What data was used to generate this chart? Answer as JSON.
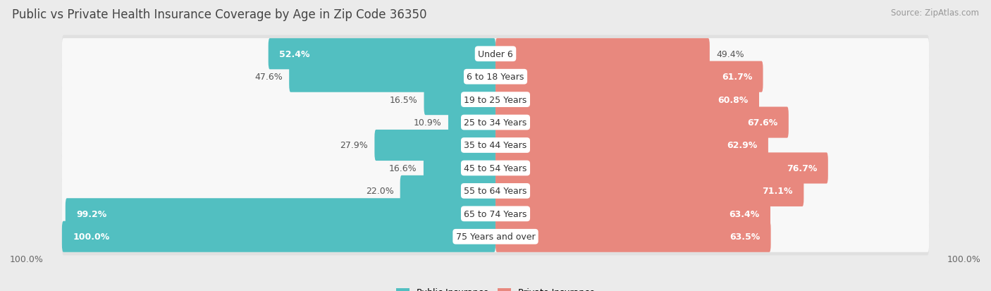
{
  "title": "Public vs Private Health Insurance Coverage by Age in Zip Code 36350",
  "source": "Source: ZipAtlas.com",
  "categories": [
    "Under 6",
    "6 to 18 Years",
    "19 to 25 Years",
    "25 to 34 Years",
    "35 to 44 Years",
    "45 to 54 Years",
    "55 to 64 Years",
    "65 to 74 Years",
    "75 Years and over"
  ],
  "public_values": [
    52.4,
    47.6,
    16.5,
    10.9,
    27.9,
    16.6,
    22.0,
    99.2,
    100.0
  ],
  "private_values": [
    49.4,
    61.7,
    60.8,
    67.6,
    62.9,
    76.7,
    71.1,
    63.4,
    63.5
  ],
  "public_color": "#52bfc1",
  "private_color": "#e8887e",
  "background_color": "#ebebeb",
  "bar_bg_color": "#f8f8f8",
  "row_bg_color": "#e0e0e0",
  "max_value": 100.0,
  "title_fontsize": 12,
  "label_fontsize": 9,
  "category_fontsize": 9,
  "legend_fontsize": 9,
  "source_fontsize": 8.5
}
